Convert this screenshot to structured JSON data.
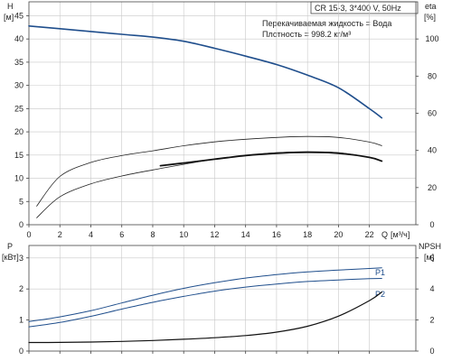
{
  "chart_data": [
    {
      "id": "head_efficiency",
      "type": "line",
      "title": "CR 15-3, 3*400 V, 50Hz",
      "annotations": [
        "Перекачиваемая жидкость = Вода",
        "Плотность = 998.2 кг/м³"
      ],
      "x_label": "Q [м³/ч]",
      "xlim": [
        0,
        25
      ],
      "x_ticks": [
        0,
        2,
        4,
        6,
        8,
        10,
        12,
        14,
        16,
        18,
        20,
        22
      ],
      "x_tick_labels": [
        "0",
        "2",
        "4",
        "6",
        "8",
        "10",
        "12",
        "14",
        "16",
        "18",
        "20",
        "22"
      ],
      "x_axis_end_label": "Q",
      "x_unit_label": "[м³/ч]",
      "y_left": {
        "label_top": "H",
        "label_unit": "[м]",
        "range": [
          0,
          48
        ],
        "ticks": [
          0,
          5,
          10,
          15,
          20,
          25,
          30,
          35,
          40,
          45
        ],
        "tick_labels": [
          "0",
          "5",
          "10",
          "15",
          "20",
          "25",
          "30",
          "35",
          "40",
          "45"
        ]
      },
      "y_right": {
        "label_top": "eta",
        "label_unit": "[%]",
        "range": [
          0,
          120
        ],
        "ticks": [
          0,
          20,
          40,
          60,
          80,
          100
        ],
        "tick_labels": [
          "0",
          "20",
          "40",
          "60",
          "80",
          "100"
        ]
      },
      "grid": true,
      "series": [
        {
          "axis": "left",
          "style": "thick-blue",
          "color": "#1f4e8c",
          "x": [
            0,
            2,
            4,
            6,
            8,
            10,
            12,
            14,
            16,
            18,
            20,
            22,
            22.8
          ],
          "y": [
            42.8,
            42.2,
            41.6,
            41.0,
            40.4,
            39.5,
            38.0,
            36.3,
            34.5,
            32.2,
            29.5,
            25.0,
            23.0
          ]
        },
        {
          "axis": "right",
          "style": "thin",
          "color": "#222222",
          "x": [
            0.5,
            2,
            4,
            6,
            8,
            10,
            12,
            14,
            16,
            18,
            20,
            22,
            22.8
          ],
          "y": [
            10,
            26,
            33.5,
            37.2,
            39.8,
            42.5,
            44.6,
            46.0,
            47.0,
            47.5,
            47.0,
            44.5,
            42.5
          ]
        },
        {
          "axis": "left",
          "style": "thin",
          "color": "#222222",
          "x": [
            0.5,
            2,
            4,
            6,
            8,
            10,
            12,
            14,
            16,
            18,
            20,
            22,
            22.8
          ],
          "y": [
            1.5,
            6.0,
            8.8,
            10.5,
            11.8,
            13.0,
            14.1,
            14.9,
            15.5,
            15.7,
            15.5,
            14.5,
            13.7
          ]
        },
        {
          "axis": "left",
          "style": "thick-black",
          "color": "#111111",
          "x": [
            8.5,
            10,
            12,
            14,
            16,
            18,
            20,
            22,
            22.8
          ],
          "y": [
            12.7,
            13.3,
            14.1,
            14.9,
            15.4,
            15.6,
            15.4,
            14.5,
            13.7
          ]
        }
      ]
    },
    {
      "id": "power_npsh",
      "type": "line",
      "xlim": [
        0,
        25
      ],
      "x_ticks": [
        0,
        2,
        4,
        6,
        8,
        10,
        12,
        14,
        16,
        18,
        20,
        22
      ],
      "y_left": {
        "label_top": "P",
        "label_unit": "[кВт]",
        "range": [
          0,
          3.4
        ],
        "ticks": [
          0,
          1,
          2,
          3
        ],
        "tick_labels": [
          "0",
          "1",
          "2",
          "3"
        ]
      },
      "y_right": {
        "label_top": "NPSH",
        "label_unit": "[м]",
        "range": [
          0,
          6.8
        ],
        "ticks": [
          0,
          2,
          4,
          6
        ],
        "tick_labels": [
          "0",
          "2",
          "4",
          "6"
        ]
      },
      "grid": true,
      "series": [
        {
          "name": "P1",
          "axis": "left",
          "style": "thin-blue",
          "color": "#1f4e8c",
          "x": [
            0,
            2,
            4,
            6,
            8,
            10,
            12,
            14,
            16,
            18,
            20,
            22,
            22.8
          ],
          "y": [
            0.95,
            1.1,
            1.3,
            1.55,
            1.8,
            2.02,
            2.2,
            2.35,
            2.46,
            2.55,
            2.61,
            2.66,
            2.68
          ]
        },
        {
          "name": "P2",
          "axis": "left",
          "style": "thin-blue",
          "color": "#1f4e8c",
          "x": [
            0,
            2,
            4,
            6,
            8,
            10,
            12,
            14,
            16,
            18,
            20,
            22,
            22.8
          ],
          "y": [
            0.78,
            0.92,
            1.12,
            1.35,
            1.57,
            1.76,
            1.93,
            2.06,
            2.16,
            2.24,
            2.29,
            2.33,
            2.34
          ]
        },
        {
          "axis": "right",
          "style": "thin-black",
          "color": "#111111",
          "x": [
            0,
            2,
            4,
            6,
            8,
            10,
            12,
            14,
            16,
            18,
            20,
            22,
            22.8
          ],
          "y": [
            0.55,
            0.56,
            0.58,
            0.62,
            0.68,
            0.76,
            0.86,
            1.0,
            1.22,
            1.6,
            2.25,
            3.25,
            3.8
          ]
        }
      ]
    }
  ]
}
